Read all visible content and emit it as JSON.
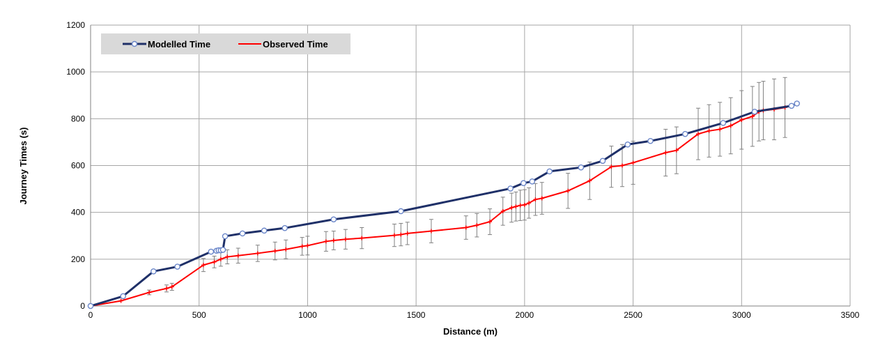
{
  "chart_data": {
    "type": "line",
    "title": "",
    "xlabel": "Distance (m)",
    "ylabel": "Journey Times (s)",
    "xlim": [
      0,
      3500
    ],
    "ylim": [
      0,
      1200
    ],
    "x_ticks": [
      0,
      500,
      1000,
      1500,
      2000,
      2500,
      3000,
      3500
    ],
    "y_ticks": [
      0,
      200,
      400,
      600,
      800,
      1000,
      1200
    ],
    "grid": true,
    "legend_position": "top-left",
    "series": [
      {
        "name": "Modelled Time",
        "color": "#1f3068",
        "marker": "circle",
        "x": [
          0,
          150,
          290,
          400,
          555,
          580,
          590,
          600,
          610,
          620,
          700,
          800,
          895,
          1120,
          1430,
          1935,
          1995,
          2035,
          2115,
          2260,
          2360,
          2475,
          2580,
          2740,
          2915,
          3060,
          3230,
          3255
        ],
        "y": [
          0,
          42,
          148,
          168,
          232,
          236,
          238,
          238,
          240,
          298,
          310,
          322,
          333,
          370,
          405,
          502,
          525,
          532,
          575,
          592,
          620,
          690,
          705,
          735,
          782,
          830,
          855,
          865
        ]
      },
      {
        "name": "Observed Time",
        "color": "#ff0000",
        "marker": "plus",
        "x": [
          0,
          140,
          270,
          350,
          375,
          520,
          570,
          600,
          630,
          680,
          770,
          850,
          900,
          975,
          1000,
          1085,
          1120,
          1175,
          1250,
          1400,
          1430,
          1460,
          1570,
          1730,
          1780,
          1840,
          1900,
          1940,
          1960,
          1980,
          2000,
          2020,
          2050,
          2080,
          2200,
          2300,
          2400,
          2450,
          2500,
          2650,
          2700,
          2800,
          2850,
          2900,
          2950,
          3000,
          3050,
          3080,
          3100,
          3150,
          3200
        ],
        "y": [
          0,
          22,
          58,
          75,
          82,
          175,
          188,
          200,
          210,
          215,
          225,
          235,
          242,
          255,
          258,
          276,
          280,
          285,
          290,
          302,
          305,
          310,
          320,
          335,
          345,
          360,
          405,
          420,
          425,
          430,
          432,
          440,
          455,
          460,
          492,
          535,
          595,
          600,
          612,
          655,
          665,
          735,
          748,
          755,
          770,
          795,
          810,
          830,
          835,
          840,
          848
        ],
        "err": [
          0,
          0,
          10,
          15,
          15,
          28,
          25,
          30,
          30,
          32,
          35,
          38,
          40,
          38,
          40,
          42,
          40,
          42,
          45,
          48,
          48,
          48,
          50,
          50,
          50,
          55,
          60,
          62,
          62,
          65,
          65,
          65,
          68,
          68,
          75,
          80,
          88,
          90,
          92,
          100,
          100,
          110,
          112,
          115,
          120,
          125,
          128,
          125,
          125,
          130,
          128
        ]
      }
    ]
  }
}
